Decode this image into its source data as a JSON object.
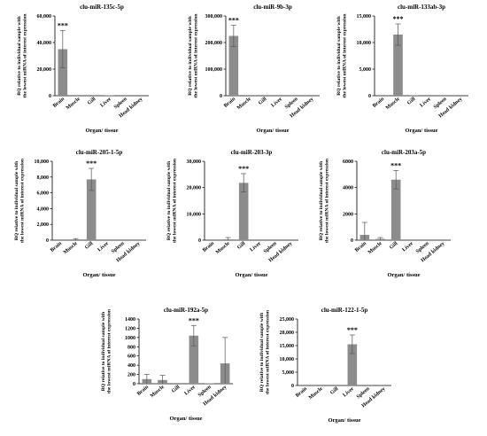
{
  "figure": {
    "colors": {
      "bar": "#8c8c8c",
      "axis": "#000000",
      "text": "#000000",
      "error": "#555555"
    }
  },
  "chart_data": [
    {
      "type": "bar",
      "title": "clu-miR-135c-5p",
      "categories": [
        "Brain",
        "Muscle",
        "Gill",
        "Liver",
        "Spleen",
        "Head kidney"
      ],
      "values": [
        35000,
        0,
        0,
        300,
        0,
        0
      ],
      "errors": [
        14000,
        0,
        0,
        0,
        0,
        0
      ],
      "significance": [
        "***",
        "",
        "",
        "",
        "",
        ""
      ],
      "ylim": [
        0,
        60000
      ],
      "yticks": [
        "0",
        "20,000",
        "40,000",
        "60,000"
      ],
      "ylabel": [
        "RQ relative to individual sample with",
        "the lowest miRNA of interest expression"
      ],
      "xlabel": "Organ/ tissue"
    },
    {
      "type": "bar",
      "title": "clu-miR-9b-3p",
      "categories": [
        "Brain",
        "Muscle",
        "Gill",
        "Liver",
        "Spleen",
        "Head kidney"
      ],
      "values": [
        225000,
        0,
        0,
        0,
        0,
        0
      ],
      "errors": [
        40000,
        0,
        0,
        0,
        0,
        0
      ],
      "significance": [
        "***",
        "",
        "",
        "",
        "",
        ""
      ],
      "ylim": [
        0,
        300000
      ],
      "yticks": [
        "0",
        "100,000",
        "200,000",
        "300,000"
      ],
      "ylabel": [
        "RQ relative to individual sample with",
        "the lowest miRNA of interest expression"
      ],
      "xlabel": "Organ/ tissue"
    },
    {
      "type": "bar",
      "title": "clu-miR-133ab-3p",
      "categories": [
        "Brain",
        "Muscle",
        "Gill",
        "Liver",
        "Spleen",
        "Head kidney"
      ],
      "values": [
        0,
        11500,
        50,
        0,
        0,
        0
      ],
      "errors": [
        0,
        2000,
        0,
        0,
        0,
        0
      ],
      "significance": [
        "",
        "***",
        "",
        "",
        "",
        ""
      ],
      "ylim": [
        0,
        15000
      ],
      "yticks": [
        "0",
        "5,000",
        "10,000",
        "15,000"
      ],
      "ylabel": [
        "RQ relative to individual sample with",
        "the lowest miRNA of interest expression"
      ],
      "xlabel": "Organ/ tissue"
    },
    {
      "type": "bar",
      "title": "clu-miR-205-1-5p",
      "categories": [
        "Brain",
        "Muscle",
        "Gill",
        "Liver",
        "Spleen",
        "Head kidney"
      ],
      "values": [
        0,
        100,
        7700,
        0,
        0,
        0
      ],
      "errors": [
        0,
        100,
        1400,
        0,
        0,
        0
      ],
      "significance": [
        "",
        "",
        "***",
        "",
        "",
        ""
      ],
      "ylim": [
        0,
        10000
      ],
      "yticks": [
        "0",
        "2,000",
        "4,000",
        "6,000",
        "8,000",
        "10,000"
      ],
      "ylabel": [
        "RQ relative to individual sample with",
        "the lowest miRNA of interest expression"
      ],
      "xlabel": "Organ/ tissue"
    },
    {
      "type": "bar",
      "title": "clu-miR-203-3p",
      "categories": [
        "Brain",
        "Muscle",
        "Gill",
        "Liver",
        "Spleen",
        "Head kidney"
      ],
      "values": [
        0,
        300,
        21800,
        0,
        0,
        0
      ],
      "errors": [
        0,
        700,
        3500,
        0,
        0,
        0
      ],
      "significance": [
        "",
        "",
        "***",
        "",
        "",
        ""
      ],
      "ylim": [
        0,
        30000
      ],
      "yticks": [
        "0",
        "10,000",
        "20,000",
        "30,000"
      ],
      "ylabel": [
        "RQ relative to individual sample with",
        "the lowest miRNA of interest expression"
      ],
      "xlabel": "Organ/ tissue"
    },
    {
      "type": "bar",
      "title": "clu-miR-203a-5p",
      "categories": [
        "Brain",
        "Muscle",
        "Gill",
        "Liver",
        "Spleen",
        "Head kidney"
      ],
      "values": [
        400,
        100,
        4600,
        0,
        0,
        0
      ],
      "errors": [
        950,
        100,
        700,
        0,
        0,
        0
      ],
      "significance": [
        "",
        "",
        "***",
        "",
        "",
        ""
      ],
      "ylim": [
        0,
        6000
      ],
      "yticks": [
        "0",
        "2000",
        "4000",
        "6000"
      ],
      "ylabel": [
        "RQ relative to individual sample with",
        "the lowest miRNA of interest expression"
      ],
      "xlabel": "Organ/ tissue"
    },
    {
      "type": "bar",
      "title": "clu-miR-192a-5p",
      "categories": [
        "Brain",
        "Muscle",
        "Gill",
        "Liver",
        "Spleen",
        "Head kidney"
      ],
      "values": [
        100,
        80,
        0,
        1040,
        10,
        440
      ],
      "errors": [
        100,
        100,
        0,
        220,
        0,
        560
      ],
      "significance": [
        "",
        "",
        "",
        "***",
        "",
        ""
      ],
      "ylim": [
        0,
        1400
      ],
      "yticks": [
        "0",
        "200",
        "400",
        "600",
        "800",
        "1000",
        "1200",
        "1400"
      ],
      "ylabel": [
        "RQ relative to individual sample with",
        "the lowest miRNA of interest expression"
      ],
      "xlabel": "Organ/ tissue"
    },
    {
      "type": "bar",
      "title": "clu-miR-122-1-5p",
      "categories": [
        "Brain",
        "Muscle",
        "Gill",
        "Liver",
        "Spleen",
        "Head kidney"
      ],
      "values": [
        0,
        0,
        0,
        15500,
        0,
        0
      ],
      "errors": [
        0,
        0,
        0,
        3500,
        0,
        0
      ],
      "significance": [
        "",
        "",
        "",
        "***",
        "",
        ""
      ],
      "ylim": [
        0,
        25000
      ],
      "yticks": [
        "0",
        "5,000",
        "10,000",
        "15,000",
        "20,000",
        "25,000"
      ],
      "ylabel": [
        "RQ relative to individual sample with",
        "the lowest miRNA of interest expression"
      ],
      "xlabel": "Organ/ tissue"
    }
  ]
}
